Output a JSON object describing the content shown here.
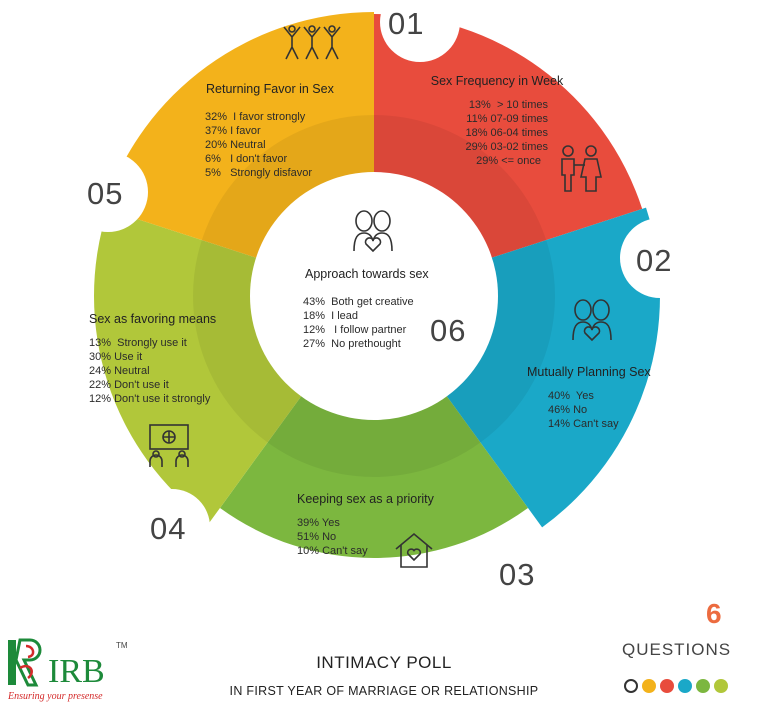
{
  "segments": [
    {
      "number": "01",
      "title": "Sex Frequency in Week",
      "color": "#e84c3d",
      "icon": "couple-icon",
      "lines": [
        "13%  > 10 times",
        "11% 07-09 times",
        "18% 06-04 times",
        "29% 03-02 times",
        "29% <= once"
      ]
    },
    {
      "number": "02",
      "title": "Mutually Planning Sex",
      "color": "#1aa8c8",
      "icon": "couple-heart-icon",
      "lines": [
        "40%  Yes",
        "46% No",
        "14% Can't say"
      ]
    },
    {
      "number": "03",
      "title": "Keeping sex as a priority",
      "color": "#7cb73f",
      "icon": "house-heart-icon",
      "lines": [
        "39% Yes",
        "51% No",
        "10% Can't say"
      ]
    },
    {
      "number": "04",
      "title": "Sex as favoring means",
      "color": "#b1c73a",
      "icon": "presentation-icon",
      "lines": [
        "13%  Strongly use it",
        "30% Use it",
        "24% Neutral",
        "22% Don't use it",
        "12% Don't use it strongly"
      ]
    },
    {
      "number": "05",
      "title": "Returning Favor in Sex",
      "color": "#f3b21b",
      "icon": "dancing-people-icon",
      "lines": [
        "32%  I favor strongly",
        "37% I favor",
        "20% Neutral",
        "6%   I don't favor",
        "5%   Strongly disfavor"
      ]
    }
  ],
  "center": {
    "number": "06",
    "title": "Approach towards sex",
    "icon": "couple-heart-icon",
    "lines": [
      "43%  Both get creative",
      "18%  I lead",
      "12%   I follow partner",
      "27%  No prethought"
    ]
  },
  "footer": {
    "title": "INTIMACY POLL",
    "subtitle": "IN FIRST YEAR OF MARRIAGE OR RELATIONSHIP",
    "question_count": "6",
    "question_label": "QUESTIONS",
    "dot_colors": [
      "#ffffff",
      "#f3b21b",
      "#e84c3d",
      "#1aa8c8",
      "#7cb73f",
      "#b1c73a"
    ]
  },
  "logo": {
    "name": "IRB",
    "tm": "TM",
    "tagline": "Ensuring your presense"
  }
}
